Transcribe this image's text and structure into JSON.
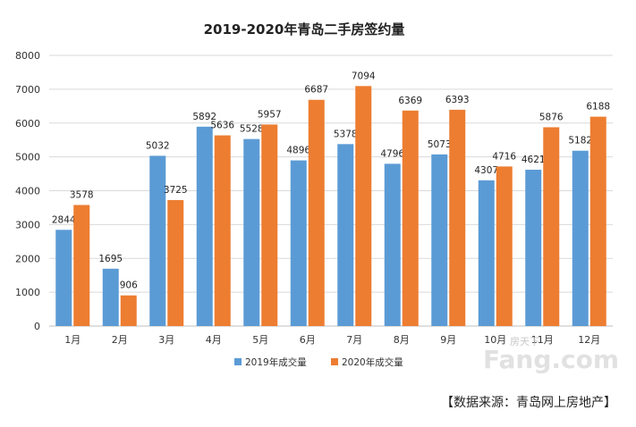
{
  "chart_data": {
    "type": "bar",
    "title": "2019-2020年青岛二手房签约量",
    "categories": [
      "1月",
      "2月",
      "3月",
      "4月",
      "5月",
      "6月",
      "7月",
      "8月",
      "9月",
      "10月",
      "11月",
      "12月"
    ],
    "series": [
      {
        "name": "2019年成交量",
        "color": "#5b9bd5",
        "values": [
          2844,
          1695,
          5032,
          5892,
          5528,
          4896,
          5378,
          4796,
          5073,
          4307,
          4621,
          5182
        ]
      },
      {
        "name": "2020年成交量",
        "color": "#ed7d31",
        "values": [
          3578,
          906,
          3725,
          5636,
          5957,
          6687,
          7094,
          6369,
          6393,
          4716,
          5876,
          6188
        ]
      }
    ],
    "ylim": [
      0,
      8000
    ],
    "yticks": [
      0,
      1000,
      2000,
      3000,
      4000,
      5000,
      6000,
      7000,
      8000
    ],
    "grid": true,
    "legend_position": "bottom"
  },
  "source_text": "【数据来源：青岛网上房地产】",
  "watermark_text": "Fang.com",
  "watermark_sub": "房天下"
}
